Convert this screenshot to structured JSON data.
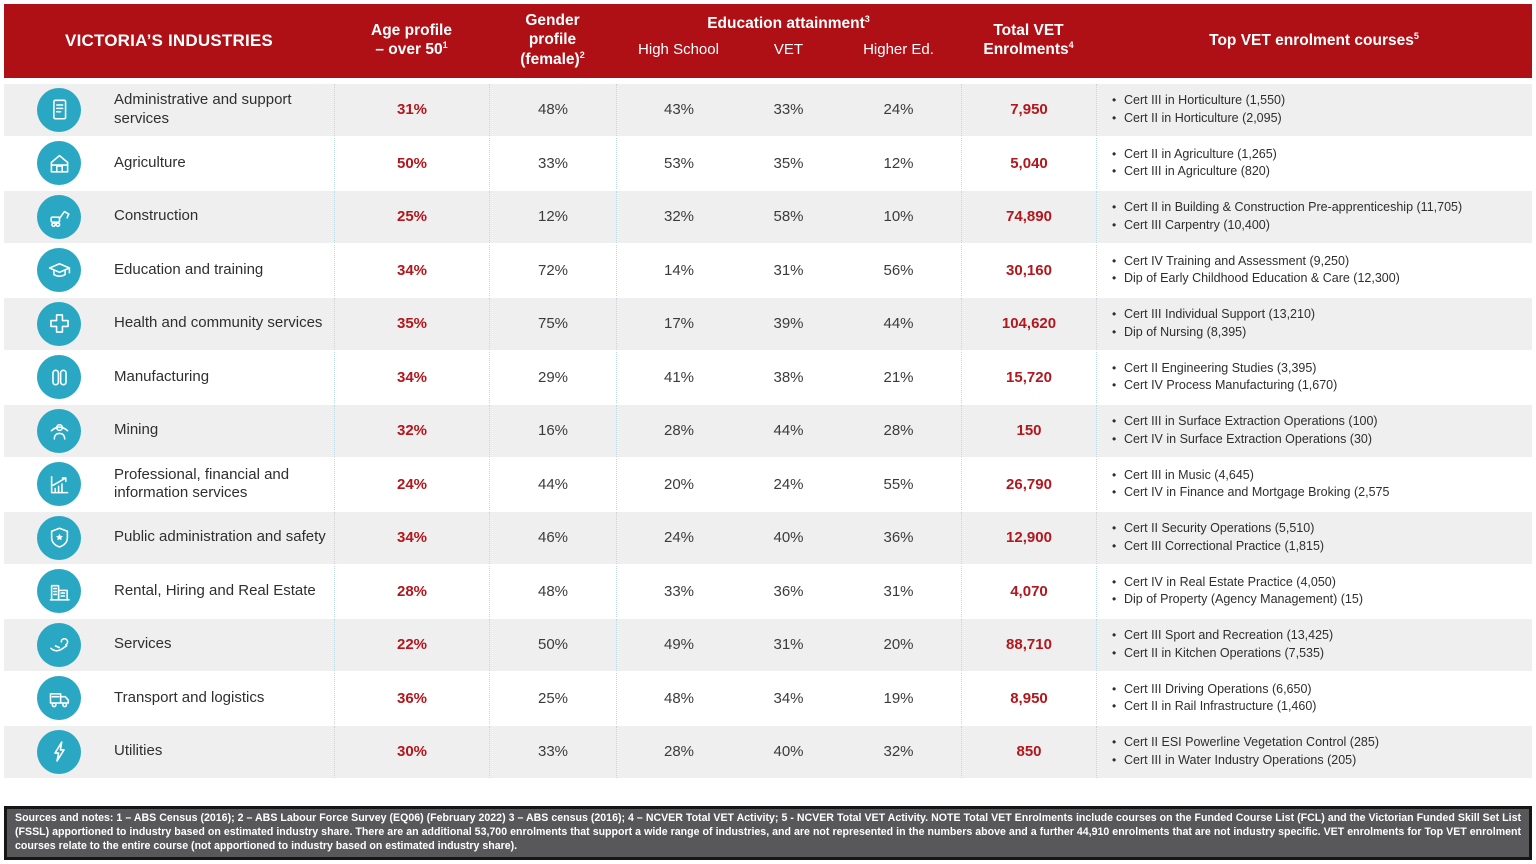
{
  "colors": {
    "header_bg": "#AE1016",
    "accent_red": "#B1171D",
    "icon_teal": "#29A7C3",
    "row_alt_bg": "#EFEFEF",
    "footer_bg": "#58585A"
  },
  "header": {
    "industries": "VICTORIA’S INDUSTRIES",
    "age": {
      "line1": "Age profile",
      "line2": "– over 50",
      "sup": "1"
    },
    "gender": {
      "line1": "Gender",
      "line2": "profile",
      "line3": "(female)",
      "sup": "2"
    },
    "education": {
      "title": "Education attainment",
      "sup": "3",
      "sub_high_school": "High School",
      "sub_vet": "VET",
      "sub_higher_ed": "Higher Ed."
    },
    "total": {
      "line1": "Total VET",
      "line2": "Enrolments",
      "sup": "4"
    },
    "courses": {
      "title": "Top VET enrolment courses",
      "sup": "5"
    }
  },
  "rows": [
    {
      "icon": "document-icon",
      "name": "Administrative and support services",
      "age": "31%",
      "gender": "48%",
      "high_school": "43%",
      "vet": "33%",
      "higher_ed": "24%",
      "total": "7,950",
      "courses": [
        "Cert III in Horticulture (1,550)",
        "Cert II in Horticulture (2,095)"
      ]
    },
    {
      "icon": "barn-icon",
      "name": "Agriculture",
      "age": "50%",
      "gender": "33%",
      "high_school": "53%",
      "vet": "35%",
      "higher_ed": "12%",
      "total": "5,040",
      "courses": [
        "Cert II in Agriculture (1,265)",
        "Cert III in Agriculture (820)"
      ]
    },
    {
      "icon": "excavator-icon",
      "name": "Construction",
      "age": "25%",
      "gender": "12%",
      "high_school": "32%",
      "vet": "58%",
      "higher_ed": "10%",
      "total": "74,890",
      "courses": [
        "Cert II in Building & Construction Pre-apprenticeship (11,705)",
        "Cert III Carpentry (10,400)"
      ]
    },
    {
      "icon": "graduation-cap-icon",
      "name": "Education and training",
      "age": "34%",
      "gender": "72%",
      "high_school": "14%",
      "vet": "31%",
      "higher_ed": "56%",
      "total": "30,160",
      "courses": [
        "Cert IV Training and Assessment (9,250)",
        "Dip of Early Childhood Education & Care (12,300)"
      ]
    },
    {
      "icon": "medical-cross-icon",
      "name": "Health and community services",
      "age": "35%",
      "gender": "75%",
      "high_school": "17%",
      "vet": "39%",
      "higher_ed": "44%",
      "total": "104,620",
      "courses": [
        "Cert III Individual Support (13,210)",
        "Dip of Nursing (8,395)"
      ]
    },
    {
      "icon": "industrial-rollers-icon",
      "name": "Manufacturing",
      "age": "34%",
      "gender": "29%",
      "high_school": "41%",
      "vet": "38%",
      "higher_ed": "21%",
      "total": "15,720",
      "courses": [
        "Cert II Engineering Studies (3,395)",
        "Cert IV Process Manufacturing (1,670)"
      ]
    },
    {
      "icon": "miner-icon",
      "name": "Mining",
      "age": "32%",
      "gender": "16%",
      "high_school": "28%",
      "vet": "44%",
      "higher_ed": "28%",
      "total": "150",
      "courses": [
        "Cert III in Surface Extraction Operations (100)",
        "Cert IV in Surface Extraction Operations (30)"
      ]
    },
    {
      "icon": "growth-chart-icon",
      "name": "Professional, financial and information services",
      "age": "24%",
      "gender": "44%",
      "high_school": "20%",
      "vet": "24%",
      "higher_ed": "55%",
      "total": "26,790",
      "courses": [
        "Cert III in Music (4,645)",
        "Cert IV in Finance and Mortgage Broking (2,575"
      ]
    },
    {
      "icon": "shield-star-icon",
      "name": "Public administration and safety",
      "age": "34%",
      "gender": "46%",
      "high_school": "24%",
      "vet": "40%",
      "higher_ed": "36%",
      "total": "12,900",
      "courses": [
        "Cert II Security Operations (5,510)",
        "Cert III Correctional Practice (1,815)"
      ]
    },
    {
      "icon": "buildings-icon",
      "name": "Rental, Hiring and Real Estate",
      "age": "28%",
      "gender": "48%",
      "high_school": "33%",
      "vet": "36%",
      "higher_ed": "31%",
      "total": "4,070",
      "courses": [
        "Cert IV in Real Estate Practice (4,050)",
        "Dip of Property (Agency Management) (15)"
      ]
    },
    {
      "icon": "caring-hands-icon",
      "name": "Services",
      "age": "22%",
      "gender": "50%",
      "high_school": "49%",
      "vet": "31%",
      "higher_ed": "20%",
      "total": "88,710",
      "courses": [
        "Cert III Sport and Recreation (13,425)",
        "Cert II in Kitchen Operations (7,535)"
      ]
    },
    {
      "icon": "truck-icon",
      "name": "Transport and logistics",
      "age": "36%",
      "gender": "25%",
      "high_school": "48%",
      "vet": "34%",
      "higher_ed": "19%",
      "total": "8,950",
      "courses": [
        "Cert III Driving Operations (6,650)",
        "Cert II in Rail Infrastructure (1,460)"
      ]
    },
    {
      "icon": "lightning-bolt-icon",
      "name": "Utilities",
      "age": "30%",
      "gender": "33%",
      "high_school": "28%",
      "vet": "40%",
      "higher_ed": "32%",
      "total": "850",
      "courses": [
        "Cert II ESI Powerline Vegetation Control (285)",
        "Cert III in Water Industry Operations (205)"
      ]
    }
  ],
  "footer": {
    "note": "Sources and notes: 1 – ABS Census (2016); 2 – ABS Labour Force Survey (EQ06) (February 2022) 3 – ABS census (2016); 4 – NCVER Total VET Activity; 5 - NCVER Total VET Activity. NOTE Total VET Enrolments include courses on the Funded Course List (FCL) and the Victorian Funded Skill Set List (FSSL) apportioned to industry based on estimated industry share. There are an additional 53,700 enrolments that support a wide range of industries, and are not represented in the numbers above and a further 44,910 enrolments that are not industry specific. VET enrolments for Top VET enrolment courses relate to the entire course (not apportioned to industry based on estimated industry share)."
  }
}
